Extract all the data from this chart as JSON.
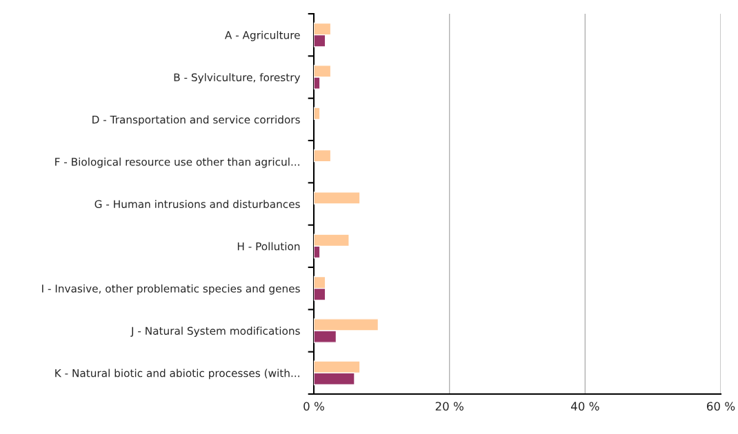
{
  "chart_data": {
    "type": "bar",
    "orientation": "horizontal",
    "categories": [
      "A - Agriculture",
      "B - Sylviculture, forestry",
      "D - Transportation and service corridors",
      "F - Biological resource use other than agricul...",
      "G - Human intrusions and disturbances",
      "H - Pollution",
      "I - Invasive, other problematic species and genes",
      "J - Natural System modifications",
      "K - Natural biotic and abiotic processes (with..."
    ],
    "series": [
      {
        "color": "#ffc896",
        "values": [
          2.5,
          2.5,
          0.9,
          2.5,
          6.8,
          5.2,
          1.7,
          9.5,
          6.8
        ]
      },
      {
        "color": "#993366",
        "values": [
          1.7,
          0.9,
          null,
          null,
          null,
          0.9,
          1.7,
          3.3,
          6.0
        ]
      }
    ],
    "xlim": [
      0,
      60
    ],
    "xticks": [
      {
        "value": 0,
        "label": "0 %"
      },
      {
        "value": 20,
        "label": "20 %"
      },
      {
        "value": 40,
        "label": "40 %"
      },
      {
        "value": 60,
        "label": "60 %"
      }
    ],
    "grid": "x"
  }
}
